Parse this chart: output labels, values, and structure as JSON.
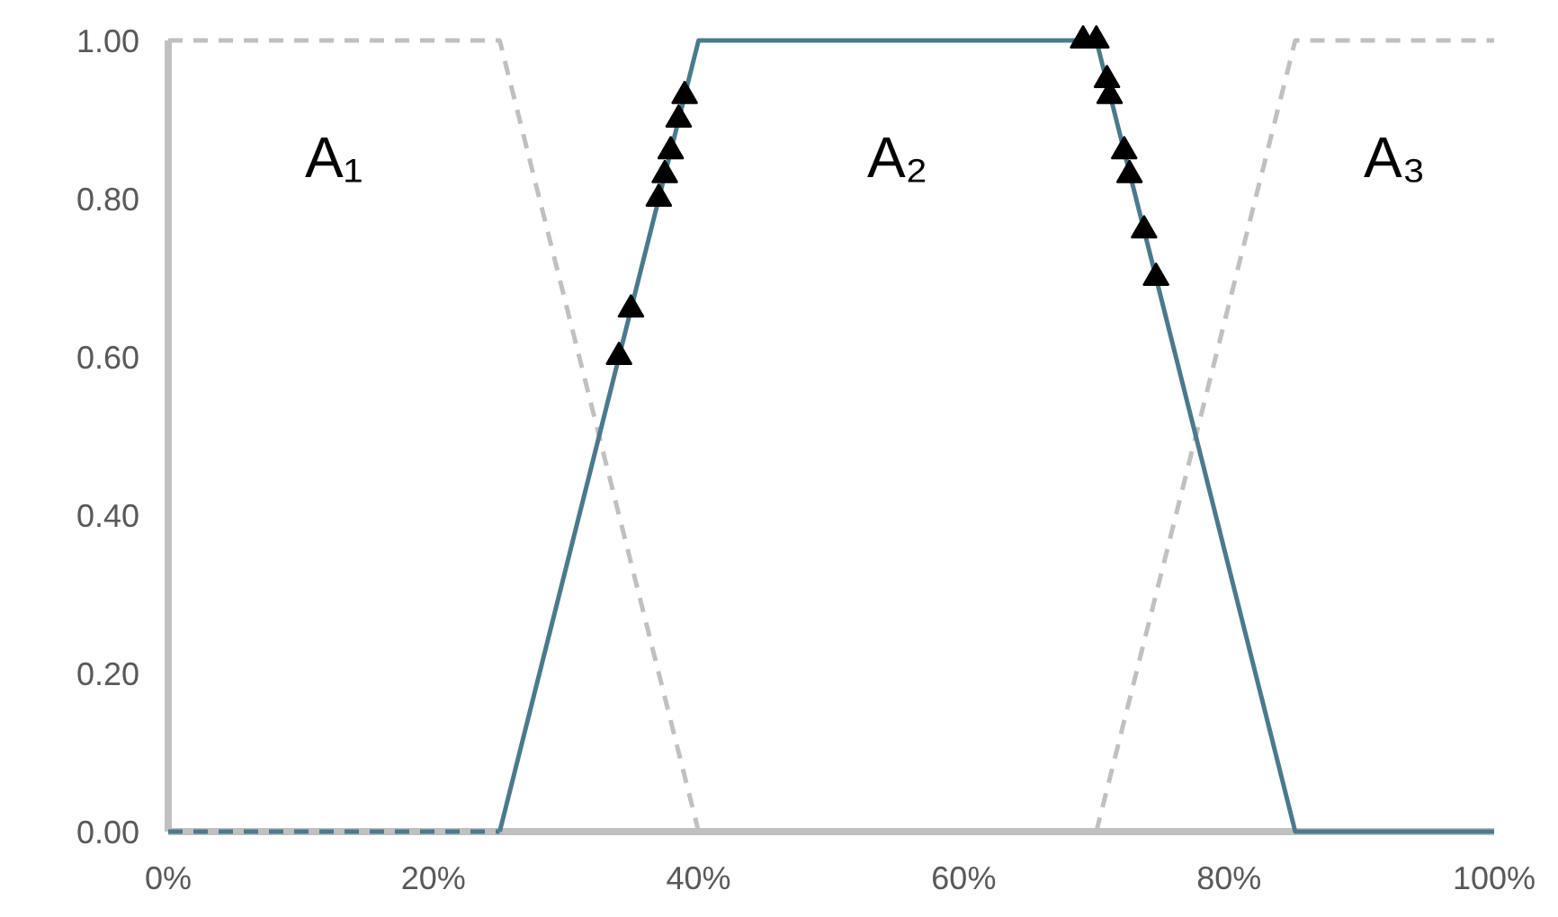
{
  "chart_data": {
    "type": "line",
    "xlim": [
      0,
      100
    ],
    "ylim": [
      0,
      1
    ],
    "xticks": [
      {
        "value": 0,
        "label": "0%"
      },
      {
        "value": 20,
        "label": "20%"
      },
      {
        "value": 40,
        "label": "40%"
      },
      {
        "value": 60,
        "label": "60%"
      },
      {
        "value": 80,
        "label": "80%"
      },
      {
        "value": 100,
        "label": "100%"
      }
    ],
    "yticks": [
      {
        "value": 0,
        "label": "0.00"
      },
      {
        "value": 0.2,
        "label": "0.20"
      },
      {
        "value": 0.4,
        "label": "0.40"
      },
      {
        "value": 0.6,
        "label": "0.60"
      },
      {
        "value": 0.8,
        "label": "0.80"
      },
      {
        "value": 1,
        "label": "1.00"
      }
    ],
    "grid": false,
    "legend": false,
    "marker": "none",
    "series": [
      {
        "name": "A₁",
        "color": "#c0c0c0",
        "line_style": "dashed",
        "x": [
          0,
          25,
          40
        ],
        "values": [
          1,
          1,
          0
        ]
      },
      {
        "name": "A₃",
        "color": "#c0c0c0",
        "line_style": "dashed",
        "x": [
          70,
          85,
          100
        ],
        "values": [
          0,
          1,
          1
        ]
      },
      {
        "color": "#4a7a8c",
        "line_style": "dashed",
        "x": [
          0,
          25
        ],
        "values": [
          0,
          0
        ]
      },
      {
        "name": "A₂",
        "color": "#4a7a8c",
        "line_style": "solid",
        "x": [
          25,
          40,
          70,
          85,
          100
        ],
        "values": [
          0,
          1,
          1,
          0,
          0
        ]
      },
      {
        "type": "scatter",
        "color": "#000000",
        "marker": "triangle",
        "x": [
          34.0,
          34.9,
          37.0,
          37.45,
          37.9,
          38.5,
          38.95,
          69,
          70,
          70.8,
          71.0,
          72.1,
          72.5,
          73.6,
          74.5
        ],
        "values": [
          0.6,
          0.66,
          0.8,
          0.83,
          0.86,
          0.9,
          0.93,
          1,
          1,
          0.95,
          0.93,
          0.86,
          0.83,
          0.76,
          0.7
        ]
      }
    ]
  }
}
